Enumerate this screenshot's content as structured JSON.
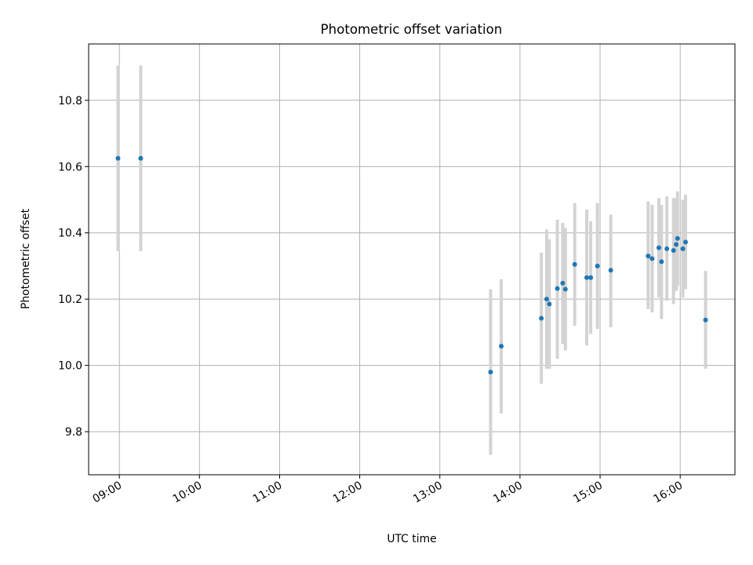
{
  "chart_data": {
    "type": "scatter",
    "title": "Photometric offset variation",
    "xlabel": "UTC time",
    "ylabel": "Photometric offset",
    "xlim": [
      "08:37",
      "16:41"
    ],
    "ylim": [
      9.67,
      10.97
    ],
    "x_ticks": [
      "09:00",
      "10:00",
      "11:00",
      "12:00",
      "13:00",
      "14:00",
      "15:00",
      "16:00"
    ],
    "y_ticks": [
      9.8,
      10.0,
      10.2,
      10.4,
      10.6,
      10.8
    ],
    "grid": true,
    "colors": {
      "point": "#1f77b4",
      "errorbar": "#d3d3d3",
      "grid": "#b0b0b0"
    },
    "points": [
      {
        "time": "08:59",
        "value": 10.625,
        "low": 10.345,
        "high": 10.905
      },
      {
        "time": "09:16",
        "value": 10.625,
        "low": 10.345,
        "high": 10.905
      },
      {
        "time": "13:38",
        "value": 9.98,
        "low": 9.73,
        "high": 10.23
      },
      {
        "time": "13:46",
        "value": 10.058,
        "low": 9.855,
        "high": 10.26
      },
      {
        "time": "14:16",
        "value": 10.142,
        "low": 9.945,
        "high": 10.34
      },
      {
        "time": "14:20",
        "value": 10.2,
        "low": 9.99,
        "high": 10.41
      },
      {
        "time": "14:22",
        "value": 10.185,
        "low": 9.99,
        "high": 10.38
      },
      {
        "time": "14:28",
        "value": 10.232,
        "low": 10.02,
        "high": 10.44
      },
      {
        "time": "14:32",
        "value": 10.248,
        "low": 10.065,
        "high": 10.43
      },
      {
        "time": "14:34",
        "value": 10.23,
        "low": 10.045,
        "high": 10.415
      },
      {
        "time": "14:41",
        "value": 10.305,
        "low": 10.12,
        "high": 10.49
      },
      {
        "time": "14:50",
        "value": 10.265,
        "low": 10.06,
        "high": 10.47
      },
      {
        "time": "14:53",
        "value": 10.265,
        "low": 10.095,
        "high": 10.435
      },
      {
        "time": "14:58",
        "value": 10.3,
        "low": 10.11,
        "high": 10.49
      },
      {
        "time": "15:08",
        "value": 10.287,
        "low": 10.115,
        "high": 10.455
      },
      {
        "time": "15:36",
        "value": 10.33,
        "low": 10.17,
        "high": 10.495
      },
      {
        "time": "15:39",
        "value": 10.322,
        "low": 10.16,
        "high": 10.485
      },
      {
        "time": "15:44",
        "value": 10.355,
        "low": 10.205,
        "high": 10.505
      },
      {
        "time": "15:46",
        "value": 10.313,
        "low": 10.14,
        "high": 10.485
      },
      {
        "time": "15:50",
        "value": 10.352,
        "low": 10.195,
        "high": 10.51
      },
      {
        "time": "15:55",
        "value": 10.347,
        "low": 10.185,
        "high": 10.505
      },
      {
        "time": "15:57",
        "value": 10.365,
        "low": 10.225,
        "high": 10.505
      },
      {
        "time": "15:58",
        "value": 10.383,
        "low": 10.24,
        "high": 10.525
      },
      {
        "time": "16:02",
        "value": 10.352,
        "low": 10.205,
        "high": 10.5
      },
      {
        "time": "16:04",
        "value": 10.372,
        "low": 10.23,
        "high": 10.515
      },
      {
        "time": "16:19",
        "value": 10.137,
        "low": 9.99,
        "high": 10.285
      }
    ]
  }
}
